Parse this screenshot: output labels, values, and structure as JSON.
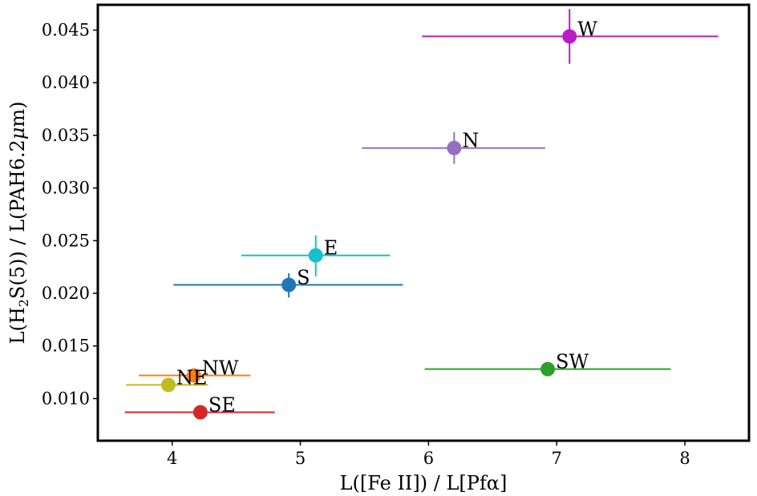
{
  "chart_data": {
    "type": "scatter",
    "title": "",
    "xlabel": "L([Fe II]) / L[Pfα]",
    "ylabel_parts": [
      "L(H",
      "2",
      "S(5)) / L(PAH6.2",
      "μ",
      "m)"
    ],
    "xlim": [
      3.42,
      8.5
    ],
    "ylim": [
      0.006,
      0.0474
    ],
    "xticks": [
      4,
      5,
      6,
      7,
      8
    ],
    "yticks": [
      0.01,
      0.015,
      0.02,
      0.025,
      0.03,
      0.035,
      0.04,
      0.045
    ],
    "ytick_labels": [
      "0.010",
      "0.015",
      "0.020",
      "0.025",
      "0.030",
      "0.035",
      "0.040",
      "0.045"
    ],
    "grid": false,
    "points": [
      {
        "label": "W",
        "x": 7.1,
        "y": 0.0444,
        "xerr": [
          5.95,
          8.26
        ],
        "yerr": [
          0.0418,
          0.047
        ],
        "color": "#b81cc4"
      },
      {
        "label": "N",
        "x": 6.2,
        "y": 0.0338,
        "xerr": [
          5.48,
          6.91
        ],
        "yerr": [
          0.0323,
          0.0353
        ],
        "color": "#9370c0"
      },
      {
        "label": "E",
        "x": 5.12,
        "y": 0.0236,
        "xerr": [
          4.54,
          5.7
        ],
        "yerr": [
          0.0216,
          0.0255
        ],
        "color": "#17bfcf"
      },
      {
        "label": "S",
        "x": 4.91,
        "y": 0.0208,
        "xerr": [
          4.01,
          5.8
        ],
        "yerr": [
          0.0196,
          0.0219
        ],
        "color": "#1f77b4"
      },
      {
        "label": "SW",
        "x": 6.93,
        "y": 0.0128,
        "xerr": [
          5.97,
          7.89
        ],
        "yerr": [
          0.0126,
          0.013
        ],
        "color": "#2ca02c"
      },
      {
        "label": "NW",
        "x": 4.17,
        "y": 0.0122,
        "xerr": [
          3.74,
          4.61
        ],
        "yerr": [
          0.012,
          0.0124
        ],
        "color": "#ff7f0e"
      },
      {
        "label": "NE",
        "x": 3.97,
        "y": 0.0113,
        "xerr": [
          3.64,
          4.28
        ],
        "yerr": [
          0.0111,
          0.0115
        ],
        "color": "#bcbd22"
      },
      {
        "label": "SE",
        "x": 4.22,
        "y": 0.0087,
        "xerr": [
          3.63,
          4.8
        ],
        "yerr": [
          0.0085,
          0.0089
        ],
        "color": "#d62728"
      }
    ]
  }
}
